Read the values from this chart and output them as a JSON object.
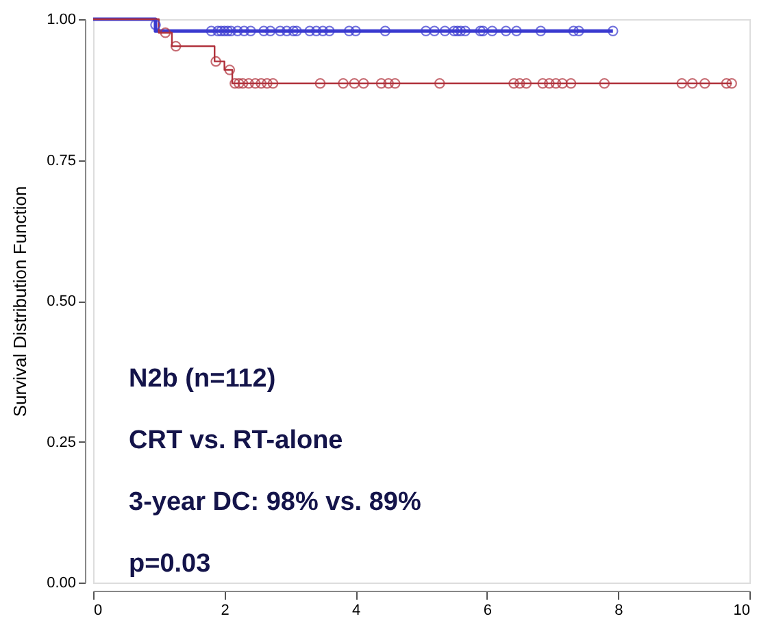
{
  "chart_data": {
    "type": "step",
    "ylabel": "Survival Distribution Function",
    "xlim": [
      0,
      10
    ],
    "xticks": [
      0,
      2,
      4,
      6,
      8,
      10
    ],
    "ylim": [
      0,
      1
    ],
    "yticks": [
      {
        "value": 0,
        "label": "0.00"
      },
      {
        "value": 0.25,
        "label": "0.25"
      },
      {
        "value": 0.5,
        "label": "0.50"
      },
      {
        "value": 0.75,
        "label": "0.75"
      },
      {
        "value": 1,
        "label": "1.00"
      }
    ],
    "grid": false,
    "legend": false,
    "series": [
      {
        "type": "step",
        "color": "#3a3ad0",
        "marker": "none",
        "x": [
          0,
          0.95,
          7.92
        ],
        "values": [
          1.0,
          0.979,
          0.979
        ]
      },
      {
        "type": "step",
        "color": "#b0303a",
        "marker": "none",
        "x": [
          0,
          1.0,
          1.2,
          1.85,
          2.0,
          2.12,
          9.73
        ],
        "values": [
          1.0,
          0.976,
          0.952,
          0.925,
          0.91,
          0.886,
          0.886
        ]
      },
      {
        "type": "scatter",
        "color": "#3a3ad0",
        "marker": "circle",
        "x": [
          0.95,
          1.8,
          1.9,
          1.95,
          2.0,
          2.05,
          2.1,
          2.2,
          2.3,
          2.4,
          2.6,
          2.7,
          2.85,
          2.95,
          3.05,
          3.1,
          3.3,
          3.4,
          3.5,
          3.6,
          3.9,
          4.0,
          4.45,
          5.07,
          5.2,
          5.36,
          5.5,
          5.55,
          5.6,
          5.67,
          5.9,
          5.94,
          6.08,
          6.29,
          6.45,
          6.82,
          7.32,
          7.4,
          7.92
        ],
        "values": [
          0.99,
          0.979,
          0.979,
          0.979,
          0.979,
          0.979,
          0.979,
          0.979,
          0.979,
          0.979,
          0.979,
          0.979,
          0.979,
          0.979,
          0.979,
          0.979,
          0.979,
          0.979,
          0.979,
          0.979,
          0.979,
          0.979,
          0.979,
          0.979,
          0.979,
          0.979,
          0.979,
          0.979,
          0.979,
          0.979,
          0.979,
          0.979,
          0.979,
          0.979,
          0.979,
          0.979,
          0.979,
          0.979,
          0.979
        ]
      },
      {
        "type": "scatter",
        "color": "#b0303a",
        "marker": "circle",
        "x": [
          1.1,
          1.26,
          1.87,
          2.08,
          2.16,
          2.22,
          2.28,
          2.37,
          2.47,
          2.56,
          2.65,
          2.74,
          3.46,
          3.81,
          3.98,
          4.12,
          4.39,
          4.5,
          4.6,
          5.28,
          6.41,
          6.5,
          6.6,
          6.85,
          6.95,
          7.05,
          7.15,
          7.28,
          7.79,
          8.97,
          9.13,
          9.32,
          9.65,
          9.73
        ],
        "values": [
          0.976,
          0.952,
          0.925,
          0.91,
          0.886,
          0.886,
          0.886,
          0.886,
          0.886,
          0.886,
          0.886,
          0.886,
          0.886,
          0.886,
          0.886,
          0.886,
          0.886,
          0.886,
          0.886,
          0.886,
          0.886,
          0.886,
          0.886,
          0.886,
          0.886,
          0.886,
          0.886,
          0.886,
          0.886,
          0.886,
          0.886,
          0.886,
          0.886,
          0.886
        ]
      }
    ],
    "annotations": [
      "N2b (n=112)",
      "CRT vs. RT-alone",
      "3-year DC: 98% vs. 89%",
      "p=0.03"
    ]
  }
}
